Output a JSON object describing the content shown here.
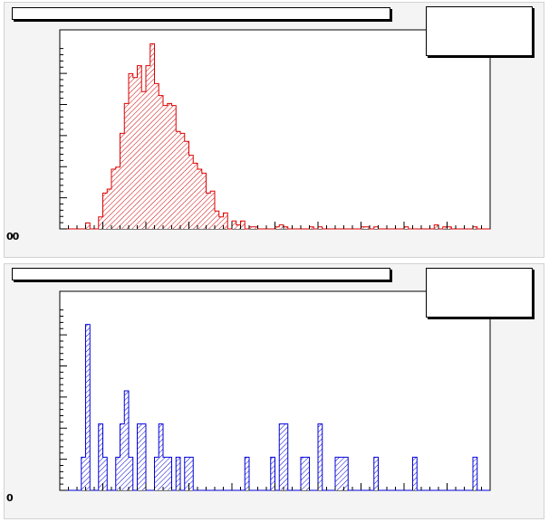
{
  "canvas": {
    "top_pad": {
      "title": "",
      "stats": "",
      "corner_label": "00",
      "fill_color": "#cc0000",
      "line_color": "#dd0000"
    },
    "bottom_pad": {
      "title": "",
      "stats": "",
      "corner_label": "0",
      "fill_color": "#0000cc",
      "line_color": "#0000dd"
    }
  },
  "chart_data": [
    {
      "type": "bar",
      "style": "step-histogram",
      "fill_pattern": "hatched",
      "title": "",
      "xlabel": "",
      "ylabel": "",
      "n_bins": 100,
      "ylim": [
        0,
        100
      ],
      "grid": false,
      "values": [
        0,
        0,
        0,
        0,
        0,
        0,
        3,
        0,
        0,
        6,
        18,
        20,
        30,
        31,
        48,
        63,
        78,
        76,
        82,
        69,
        82,
        93,
        73,
        67,
        62,
        63,
        62,
        49,
        48,
        44,
        37,
        33,
        30,
        28,
        18,
        19,
        9,
        6,
        8,
        0,
        4,
        2,
        4,
        0,
        1,
        1,
        0,
        0,
        0,
        0,
        1,
        2,
        1,
        0,
        0,
        0,
        0,
        0,
        1,
        0,
        1,
        0,
        0,
        0,
        0,
        0,
        0,
        0,
        0,
        0,
        1,
        1,
        0,
        1,
        0,
        0,
        0,
        0,
        0,
        0,
        1,
        0,
        0,
        0,
        0,
        0,
        0,
        2,
        0,
        1,
        1,
        0,
        0,
        0,
        0,
        0,
        1,
        0,
        0,
        0
      ]
    },
    {
      "type": "bar",
      "style": "step-histogram",
      "fill_pattern": "hatched",
      "title": "",
      "xlabel": "",
      "ylabel": "",
      "n_bins": 100,
      "ylim": [
        0,
        6
      ],
      "grid": false,
      "values": [
        0,
        0,
        0,
        0,
        0,
        1,
        5,
        0,
        0,
        2,
        1,
        0,
        0,
        1,
        2,
        3,
        1,
        0,
        2,
        2,
        0,
        0,
        1,
        2,
        1,
        1,
        0,
        1,
        0,
        1,
        1,
        0,
        0,
        0,
        0,
        0,
        0,
        0,
        0,
        0,
        0,
        0,
        0,
        1,
        0,
        0,
        0,
        0,
        0,
        1,
        0,
        2,
        2,
        0,
        0,
        0,
        1,
        1,
        0,
        0,
        2,
        0,
        0,
        0,
        1,
        1,
        1,
        0,
        0,
        0,
        0,
        0,
        0,
        1,
        0,
        0,
        0,
        0,
        0,
        0,
        0,
        0,
        1,
        0,
        0,
        0,
        0,
        0,
        0,
        0,
        0,
        0,
        0,
        0,
        0,
        0,
        1,
        0,
        0,
        0
      ]
    }
  ]
}
